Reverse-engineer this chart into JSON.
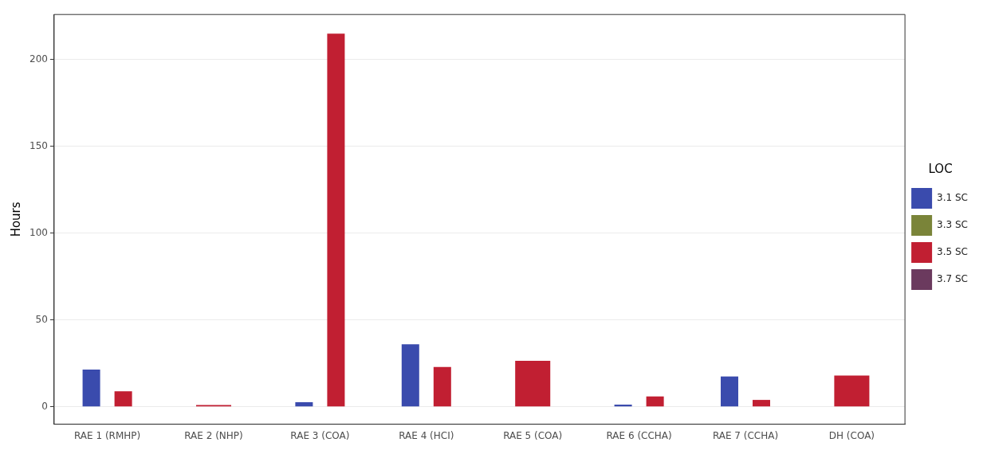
{
  "chart_data": {
    "type": "bar",
    "ylabel": "Hours",
    "legend_title": "LOC",
    "categories": [
      "RAE 1 (RMHP)",
      "RAE 2 (NHP)",
      "RAE 3 (COA)",
      "RAE 4 (HCI)",
      "RAE 5 (COA)",
      "RAE 6 (CCHA)",
      "RAE 7 (CCHA)",
      "DH (COA)"
    ],
    "series": [
      {
        "name": "3.1 SC",
        "color": "#3a4bad",
        "values": [
          21.5,
          null,
          2.7,
          36,
          null,
          1.3,
          17.5,
          null
        ]
      },
      {
        "name": "3.3 SC",
        "color": "#7a8439",
        "values": [
          null,
          null,
          null,
          null,
          null,
          null,
          null,
          null
        ]
      },
      {
        "name": "3.5 SC",
        "color": "#c11f32",
        "values": [
          9,
          1,
          215,
          23,
          26.5,
          6,
          4,
          18
        ]
      },
      {
        "name": "3.7 SC",
        "color": "#6b3a5e",
        "values": [
          null,
          null,
          null,
          null,
          null,
          null,
          null,
          null
        ]
      }
    ],
    "ylim": [
      -10,
      226
    ],
    "yticks": [
      0,
      50,
      100,
      150,
      200
    ],
    "grid": "y",
    "legend": "right"
  }
}
